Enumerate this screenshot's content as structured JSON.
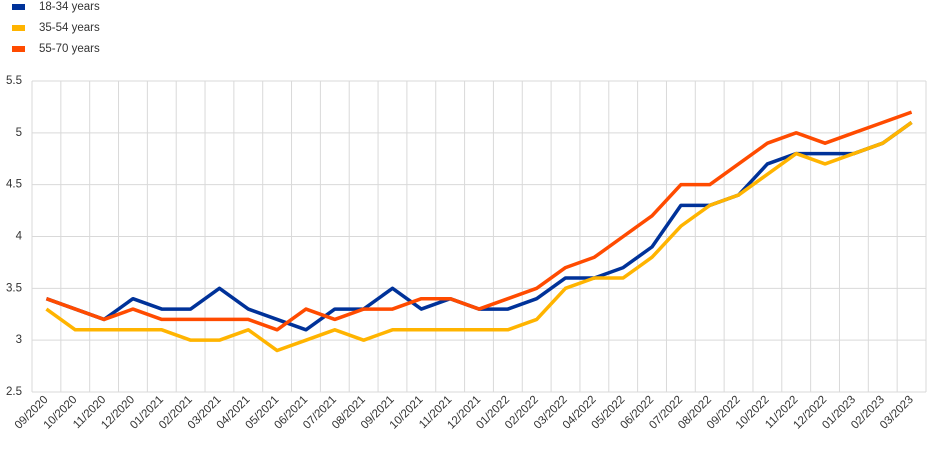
{
  "chart_data": {
    "type": "line",
    "categories": [
      "09/2020",
      "10/2020",
      "11/2020",
      "12/2020",
      "01/2021",
      "02/2021",
      "03/2021",
      "04/2021",
      "05/2021",
      "06/2021",
      "07/2021",
      "08/2021",
      "09/2021",
      "10/2021",
      "11/2021",
      "12/2021",
      "01/2022",
      "02/2022",
      "03/2022",
      "04/2022",
      "05/2022",
      "06/2022",
      "07/2022",
      "08/2022",
      "09/2022",
      "10/2022",
      "11/2022",
      "12/2022",
      "01/2023",
      "02/2023",
      "03/2023"
    ],
    "series": [
      {
        "name": "18-34 years",
        "color": "#003299",
        "values": [
          3.4,
          3.3,
          3.2,
          3.4,
          3.3,
          3.3,
          3.5,
          3.3,
          3.2,
          3.1,
          3.3,
          3.3,
          3.5,
          3.3,
          3.4,
          3.3,
          3.3,
          3.4,
          3.6,
          3.6,
          3.7,
          3.9,
          4.3,
          4.3,
          4.4,
          4.7,
          4.8,
          4.8,
          4.8,
          4.9,
          5.1
        ]
      },
      {
        "name": "35-54 years",
        "color": "#ffb400",
        "values": [
          3.3,
          3.1,
          3.1,
          3.1,
          3.1,
          3.0,
          3.0,
          3.1,
          2.9,
          3.0,
          3.1,
          3.0,
          3.1,
          3.1,
          3.1,
          3.1,
          3.1,
          3.2,
          3.5,
          3.6,
          3.6,
          3.8,
          4.1,
          4.3,
          4.4,
          4.6,
          4.8,
          4.7,
          4.8,
          4.9,
          5.1
        ]
      },
      {
        "name": "55-70 years",
        "color": "#ff4b00",
        "values": [
          3.4,
          3.3,
          3.2,
          3.3,
          3.2,
          3.2,
          3.2,
          3.2,
          3.1,
          3.3,
          3.2,
          3.3,
          3.3,
          3.4,
          3.4,
          3.3,
          3.4,
          3.5,
          3.7,
          3.8,
          4.0,
          4.2,
          4.5,
          4.5,
          4.7,
          4.9,
          5.0,
          4.9,
          5.0,
          5.1,
          5.2
        ]
      }
    ],
    "ylim": [
      2.5,
      5.5
    ],
    "yticks": [
      2.5,
      3,
      3.5,
      4,
      4.5,
      5,
      5.5
    ],
    "grid": true,
    "legend": "top-left"
  }
}
